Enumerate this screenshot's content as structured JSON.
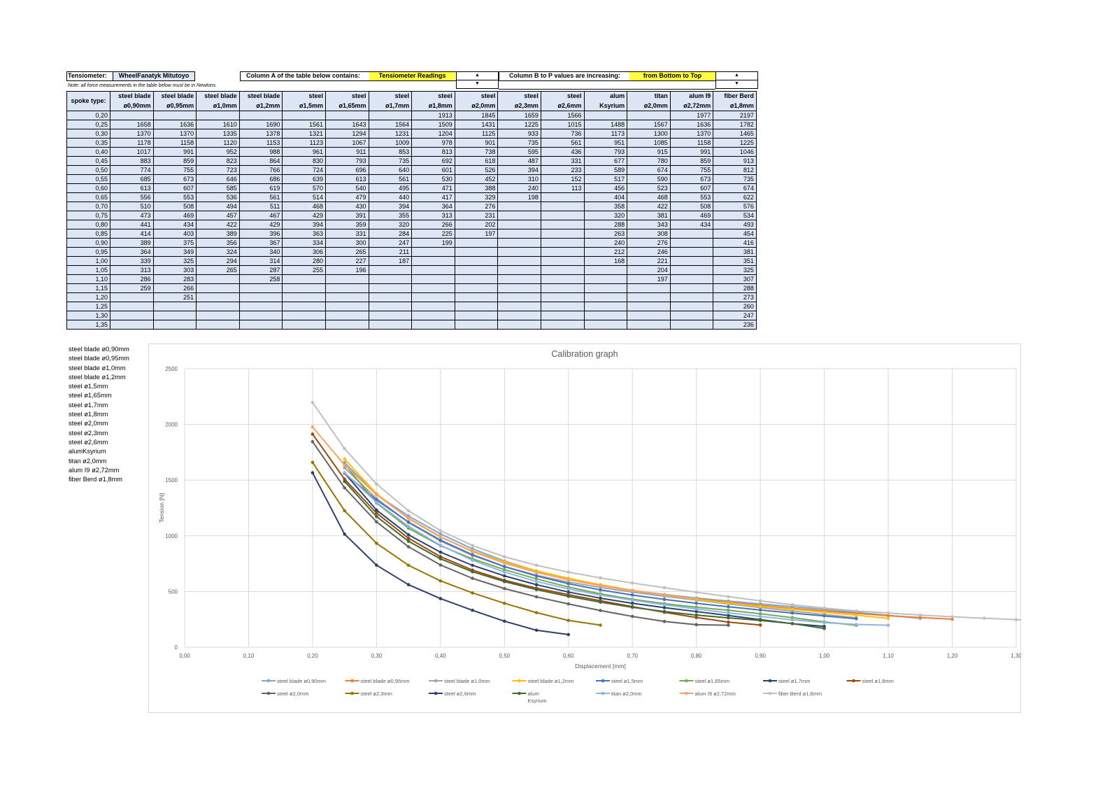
{
  "header": {
    "tensiometer_label": "Tensiometer:",
    "tensiometer_value": "WheelFanatyk Mitutoyo",
    "colA_label": "Column A of the table below contains:",
    "colA_value": "Tensiometer Readings",
    "colB_label": "Column B to P values are increasing:",
    "colB_value": "from Bottom to Top",
    "note": "Note: all force measurements in the table below must be in Newtons."
  },
  "table": {
    "corner": "spoke type:",
    "columns": [
      {
        "l1": "steel blade",
        "l2": "ø0,90mm"
      },
      {
        "l1": "steel blade",
        "l2": "ø0,95mm"
      },
      {
        "l1": "steel blade",
        "l2": "ø1,0mm"
      },
      {
        "l1": "steel blade",
        "l2": "ø1,2mm"
      },
      {
        "l1": "steel",
        "l2": "ø1,5mm"
      },
      {
        "l1": "steel",
        "l2": "ø1,65mm"
      },
      {
        "l1": "steel",
        "l2": "ø1,7mm"
      },
      {
        "l1": "steel",
        "l2": "ø1,8mm"
      },
      {
        "l1": "steel",
        "l2": "ø2,0mm"
      },
      {
        "l1": "steel",
        "l2": "ø2,3mm"
      },
      {
        "l1": "steel",
        "l2": "ø2,6mm"
      },
      {
        "l1": "alum",
        "l2": "Ksyrium"
      },
      {
        "l1": "titan",
        "l2": "ø2,0mm"
      },
      {
        "l1": "alum I9",
        "l2": "ø2,72mm"
      },
      {
        "l1": "fiber Berd",
        "l2": "ø1,8mm"
      }
    ],
    "rows": [
      {
        "x": "0,20",
        "v": [
          "",
          "",
          "",
          "",
          "",
          "",
          "",
          "1913",
          "1845",
          "1659",
          "1566",
          "",
          "",
          "1977",
          "2197"
        ]
      },
      {
        "x": "0,25",
        "v": [
          "1658",
          "1636",
          "1610",
          "1690",
          "1561",
          "1643",
          "1564",
          "1509",
          "1431",
          "1225",
          "1015",
          "1488",
          "1567",
          "1636",
          "1782"
        ]
      },
      {
        "x": "0,30",
        "v": [
          "1370",
          "1370",
          "1335",
          "1378",
          "1321",
          "1294",
          "1231",
          "1204",
          "1125",
          "933",
          "736",
          "1173",
          "1300",
          "1370",
          "1465"
        ]
      },
      {
        "x": "0,35",
        "v": [
          "1178",
          "1158",
          "1120",
          "1153",
          "1123",
          "1067",
          "1009",
          "978",
          "901",
          "735",
          "561",
          "951",
          "1085",
          "1158",
          "1225"
        ]
      },
      {
        "x": "0,40",
        "v": [
          "1017",
          "991",
          "952",
          "988",
          "961",
          "911",
          "853",
          "813",
          "738",
          "595",
          "436",
          "793",
          "915",
          "991",
          "1046"
        ]
      },
      {
        "x": "0,45",
        "v": [
          "883",
          "859",
          "823",
          "864",
          "830",
          "793",
          "735",
          "692",
          "618",
          "487",
          "331",
          "677",
          "780",
          "859",
          "913"
        ]
      },
      {
        "x": "0,50",
        "v": [
          "774",
          "755",
          "723",
          "766",
          "724",
          "696",
          "640",
          "601",
          "526",
          "394",
          "233",
          "589",
          "674",
          "755",
          "812"
        ]
      },
      {
        "x": "0,55",
        "v": [
          "685",
          "673",
          "646",
          "686",
          "639",
          "613",
          "561",
          "530",
          "452",
          "310",
          "152",
          "517",
          "590",
          "673",
          "735"
        ]
      },
      {
        "x": "0,60",
        "v": [
          "613",
          "607",
          "585",
          "619",
          "570",
          "540",
          "495",
          "471",
          "388",
          "240",
          "113",
          "456",
          "523",
          "607",
          "674"
        ]
      },
      {
        "x": "0,65",
        "v": [
          "556",
          "553",
          "536",
          "561",
          "514",
          "479",
          "440",
          "417",
          "329",
          "198",
          "",
          "404",
          "468",
          "553",
          "622"
        ]
      },
      {
        "x": "0,70",
        "v": [
          "510",
          "508",
          "494",
          "511",
          "468",
          "430",
          "394",
          "364",
          "276",
          "",
          "",
          "358",
          "422",
          "508",
          "576"
        ]
      },
      {
        "x": "0,75",
        "v": [
          "473",
          "469",
          "457",
          "467",
          "429",
          "391",
          "355",
          "313",
          "231",
          "",
          "",
          "320",
          "381",
          "469",
          "534"
        ]
      },
      {
        "x": "0,80",
        "v": [
          "441",
          "434",
          "422",
          "429",
          "394",
          "359",
          "320",
          "266",
          "202",
          "",
          "",
          "288",
          "343",
          "434",
          "493"
        ]
      },
      {
        "x": "0,85",
        "v": [
          "414",
          "403",
          "389",
          "396",
          "363",
          "331",
          "284",
          "225",
          "197",
          "",
          "",
          "263",
          "308",
          "",
          "454"
        ]
      },
      {
        "x": "0,90",
        "v": [
          "389",
          "375",
          "356",
          "367",
          "334",
          "300",
          "247",
          "199",
          "",
          "",
          "",
          "240",
          "276",
          "",
          "416"
        ]
      },
      {
        "x": "0,95",
        "v": [
          "364",
          "349",
          "324",
          "340",
          "306",
          "265",
          "211",
          "",
          "",
          "",
          "",
          "212",
          "246",
          "",
          "381"
        ]
      },
      {
        "x": "1,00",
        "v": [
          "339",
          "325",
          "294",
          "314",
          "280",
          "227",
          "187",
          "",
          "",
          "",
          "",
          "168",
          "221",
          "",
          "351"
        ]
      },
      {
        "x": "1,05",
        "v": [
          "313",
          "303",
          "265",
          "287",
          "255",
          "196",
          "",
          "",
          "",
          "",
          "",
          "",
          "204",
          "",
          "325"
        ]
      },
      {
        "x": "1,10",
        "v": [
          "286",
          "283",
          "",
          "258",
          "",
          "",
          "",
          "",
          "",
          "",
          "",
          "",
          "197",
          "",
          "307"
        ]
      },
      {
        "x": "1,15",
        "v": [
          "259",
          "266",
          "",
          "",
          "",
          "",
          "",
          "",
          "",
          "",
          "",
          "",
          "",
          "",
          "288"
        ]
      },
      {
        "x": "1,20",
        "v": [
          "",
          "251",
          "",
          "",
          "",
          "",
          "",
          "",
          "",
          "",
          "",
          "",
          "",
          "",
          "273"
        ]
      },
      {
        "x": "1,25",
        "v": [
          "",
          "",
          "",
          "",
          "",
          "",
          "",
          "",
          "",
          "",
          "",
          "",
          "",
          "",
          "260"
        ]
      },
      {
        "x": "1,30",
        "v": [
          "",
          "",
          "",
          "",
          "",
          "",
          "",
          "",
          "",
          "",
          "",
          "",
          "",
          "",
          "247"
        ]
      },
      {
        "x": "1,35",
        "v": [
          "",
          "",
          "",
          "",
          "",
          "",
          "",
          "",
          "",
          "",
          "",
          "",
          "",
          "",
          "236"
        ]
      }
    ]
  },
  "names_list": [
    "steel blade ø0,90mm",
    "steel blade ø0,95mm",
    "steel blade ø1,0mm",
    "steel blade ø1,2mm",
    "steel ø1,5mm",
    "steel ø1,65mm",
    "steel ø1,7mm",
    "steel ø1,8mm",
    "steel ø2,0mm",
    "steel ø2,3mm",
    "steel ø2,6mm",
    "alumKsyrium",
    "titan ø2,0mm",
    "alum I9 ø2,72mm",
    "fiber Berd ø1,8mm"
  ],
  "chart_data": {
    "type": "line",
    "title": "Calibration graph",
    "xlabel": "Displacement [mm]",
    "ylabel": "Tension [N]",
    "xlim": [
      0,
      1.3
    ],
    "ylim": [
      0,
      2500
    ],
    "xticks": [
      "0,00",
      "0,10",
      "0,20",
      "0,30",
      "0,40",
      "0,50",
      "0,60",
      "0,70",
      "0,80",
      "0,90",
      "1,00",
      "1,10",
      "1,20",
      "1,30"
    ],
    "yticks": [
      "0",
      "500",
      "1000",
      "1500",
      "2000",
      "2500"
    ],
    "grid": true,
    "legend": "bottom",
    "series": [
      {
        "name": "steel blade ø0,90mm",
        "color": "#7ea6d6",
        "start": 0.25,
        "values": [
          1658,
          1370,
          1178,
          1017,
          883,
          774,
          685,
          613,
          556,
          510,
          473,
          441,
          414,
          389,
          364,
          339,
          313,
          286,
          259
        ]
      },
      {
        "name": "steel blade ø0,95mm",
        "color": "#ed7d31",
        "start": 0.25,
        "values": [
          1636,
          1370,
          1158,
          991,
          859,
          755,
          673,
          607,
          553,
          508,
          469,
          434,
          403,
          375,
          349,
          325,
          303,
          283,
          266,
          251
        ]
      },
      {
        "name": "steel blade ø1,0mm",
        "color": "#a5a5a5",
        "start": 0.25,
        "values": [
          1610,
          1335,
          1120,
          952,
          823,
          723,
          646,
          585,
          536,
          494,
          457,
          422,
          389,
          356,
          324,
          294,
          265
        ]
      },
      {
        "name": "steel blade ø1,2mm",
        "color": "#ffc000",
        "start": 0.25,
        "values": [
          1690,
          1378,
          1153,
          988,
          864,
          766,
          686,
          619,
          561,
          511,
          467,
          429,
          396,
          367,
          340,
          314,
          287,
          258
        ]
      },
      {
        "name": "steel ø1,5mm",
        "color": "#4472c4",
        "start": 0.25,
        "values": [
          1561,
          1321,
          1123,
          961,
          830,
          724,
          639,
          570,
          514,
          468,
          429,
          394,
          363,
          334,
          306,
          280,
          255
        ]
      },
      {
        "name": "steel ø1,65mm",
        "color": "#70ad47",
        "start": 0.25,
        "values": [
          1643,
          1294,
          1067,
          911,
          793,
          696,
          613,
          540,
          479,
          430,
          391,
          359,
          331,
          300,
          265,
          227,
          196
        ]
      },
      {
        "name": "steel ø1,7mm",
        "color": "#264478",
        "start": 0.25,
        "values": [
          1564,
          1231,
          1009,
          853,
          735,
          640,
          561,
          495,
          440,
          394,
          355,
          320,
          284,
          247,
          211,
          187
        ]
      },
      {
        "name": "steel ø1,8mm",
        "color": "#9e480e",
        "start": 0.2,
        "values": [
          1913,
          1509,
          1204,
          978,
          813,
          692,
          601,
          530,
          471,
          417,
          364,
          313,
          266,
          225,
          199
        ]
      },
      {
        "name": "steel ø2,0mm",
        "color": "#636363",
        "start": 0.2,
        "values": [
          1845,
          1431,
          1125,
          901,
          738,
          618,
          526,
          452,
          388,
          329,
          276,
          231,
          202,
          197
        ]
      },
      {
        "name": "steel ø2,3mm",
        "color": "#997300",
        "start": 0.2,
        "values": [
          1659,
          1225,
          933,
          735,
          595,
          487,
          394,
          310,
          240,
          198
        ]
      },
      {
        "name": "steel ø2,6mm",
        "color": "#2f3f6d",
        "start": 0.2,
        "values": [
          1566,
          1015,
          736,
          561,
          436,
          331,
          233,
          152,
          113
        ]
      },
      {
        "name": "alum Ksyrium",
        "l1": "alum",
        "l2": "Ksyrium",
        "color": "#43682b",
        "start": 0.25,
        "values": [
          1488,
          1173,
          951,
          793,
          677,
          589,
          517,
          456,
          404,
          358,
          320,
          288,
          263,
          240,
          212,
          168
        ]
      },
      {
        "name": "titan ø2,0mm",
        "color": "#8fb4e3",
        "start": 0.25,
        "values": [
          1567,
          1300,
          1085,
          915,
          780,
          674,
          590,
          523,
          468,
          422,
          381,
          343,
          308,
          276,
          246,
          221,
          204,
          197
        ]
      },
      {
        "name": "alum I9 ø2,72mm",
        "color": "#f4a26b",
        "start": 0.2,
        "values": [
          1977,
          1636,
          1370,
          1158,
          991,
          859,
          755,
          673,
          607,
          553,
          508,
          469,
          434
        ]
      },
      {
        "name": "fiber Berd ø1,8mm",
        "color": "#bfbfbf",
        "start": 0.2,
        "values": [
          2197,
          1782,
          1465,
          1225,
          1046,
          913,
          812,
          735,
          674,
          622,
          576,
          534,
          493,
          454,
          416,
          381,
          351,
          325,
          307,
          288,
          273,
          260,
          247,
          236
        ]
      }
    ]
  }
}
